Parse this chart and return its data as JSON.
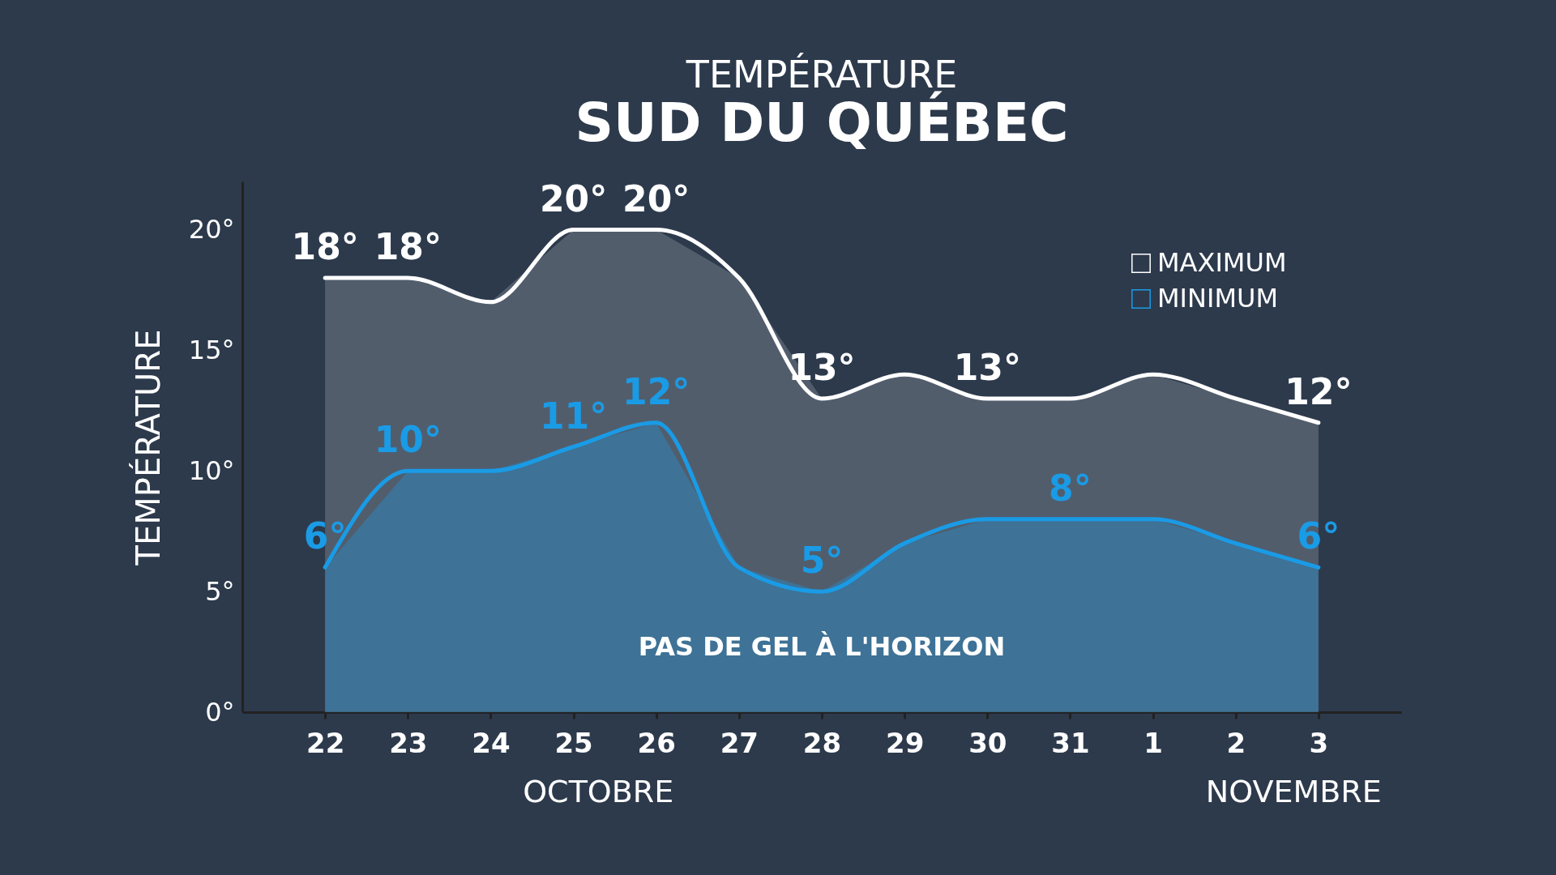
{
  "chart_data": {
    "type": "area",
    "title": "TEMPÉRATURE",
    "subtitle": "SUD DU QUÉBEC",
    "ylabel": "TEMPÉRATURE",
    "categories": [
      "22",
      "23",
      "24",
      "25",
      "26",
      "27",
      "28",
      "29",
      "30",
      "31",
      "1",
      "2",
      "3"
    ],
    "series": [
      {
        "name": "MAXIMUM",
        "color": "#ffffff",
        "values": [
          18,
          18,
          17,
          20,
          20,
          18,
          13,
          14,
          13,
          13,
          14,
          13,
          12
        ],
        "value_labels": [
          "18°",
          "18°",
          null,
          "20°",
          "20°",
          null,
          "13°",
          null,
          "13°",
          null,
          null,
          null,
          "12°"
        ]
      },
      {
        "name": "MINIMUM",
        "color": "#1a9be6",
        "values": [
          6,
          10,
          10,
          11,
          12,
          6,
          5,
          7,
          8,
          8,
          8,
          7,
          6
        ],
        "value_labels": [
          "6°",
          "10°",
          null,
          "11°",
          "12°",
          null,
          "5°",
          null,
          null,
          "8°",
          null,
          null,
          "6°"
        ]
      }
    ],
    "ylim": [
      0,
      22
    ],
    "yticks": [
      {
        "value": 0,
        "label": "0°"
      },
      {
        "value": 5,
        "label": "5°"
      },
      {
        "value": 10,
        "label": "10°"
      },
      {
        "value": 15,
        "label": "15°"
      },
      {
        "value": 20,
        "label": "20°"
      }
    ],
    "grid": false,
    "legend": "top right",
    "annotations": [
      "OCTOBRE",
      "NOVEMBRE",
      "PAS DE GEL À L'HORIZON"
    ]
  }
}
